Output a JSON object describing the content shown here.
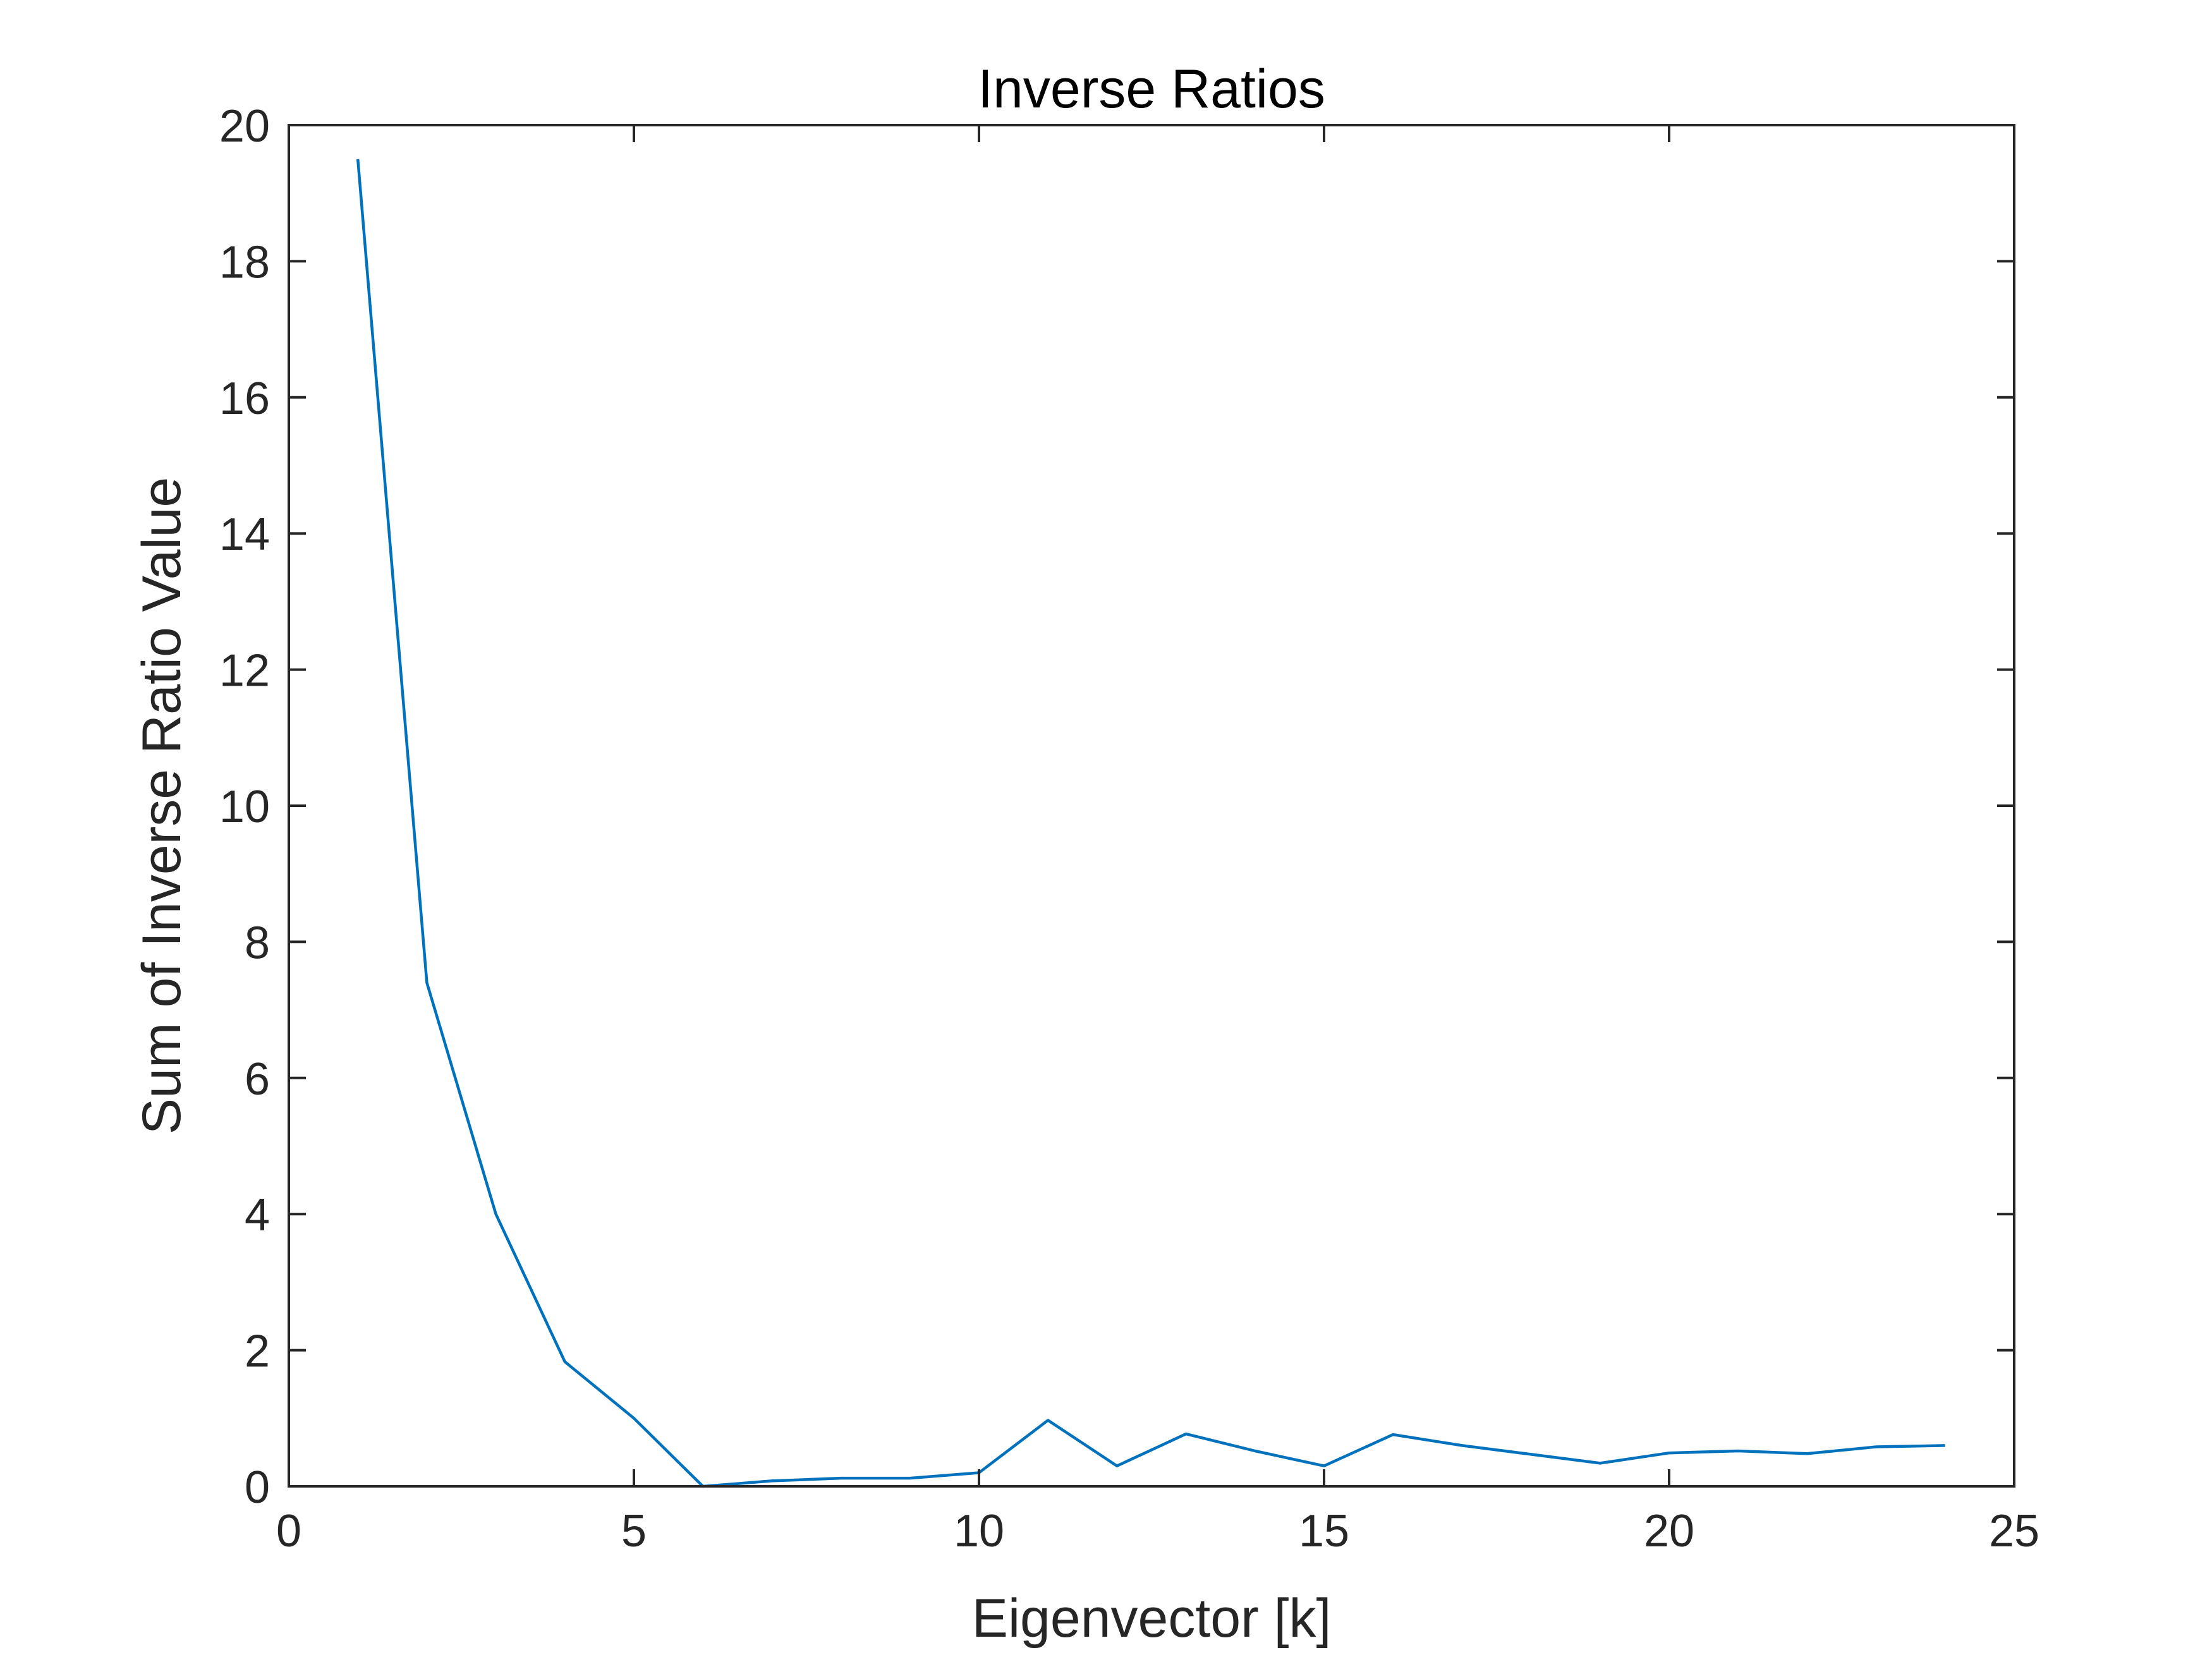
{
  "chart_data": {
    "type": "line",
    "title": "Inverse Ratios",
    "xlabel": "Eigenvector [k]",
    "ylabel": "Sum of Inverse Ratio Value",
    "xlim": [
      0,
      25
    ],
    "ylim": [
      0,
      20
    ],
    "xticks": [
      0,
      5,
      10,
      15,
      20,
      25
    ],
    "yticks": [
      0,
      2,
      4,
      6,
      8,
      10,
      12,
      14,
      16,
      18,
      20
    ],
    "xtick_labels": [
      "0",
      "5",
      "10",
      "15",
      "20",
      "25"
    ],
    "ytick_labels": [
      "0",
      "2",
      "4",
      "6",
      "8",
      "10",
      "12",
      "14",
      "16",
      "18",
      "20"
    ],
    "grid": false,
    "box": true,
    "series": [
      {
        "color": "#0072BD",
        "x": [
          1,
          2,
          3,
          4,
          5,
          6,
          7,
          8,
          9,
          10,
          11,
          12,
          13,
          14,
          15,
          16,
          17,
          18,
          19,
          20,
          21,
          22,
          23,
          24
        ],
        "y": [
          19.5,
          7.4,
          4.0,
          1.83,
          1.0,
          0.0,
          0.08,
          0.12,
          0.12,
          0.2,
          0.97,
          0.3,
          0.77,
          0.52,
          0.3,
          0.76,
          0.6,
          0.47,
          0.34,
          0.49,
          0.52,
          0.48,
          0.58,
          0.6
        ]
      }
    ]
  }
}
